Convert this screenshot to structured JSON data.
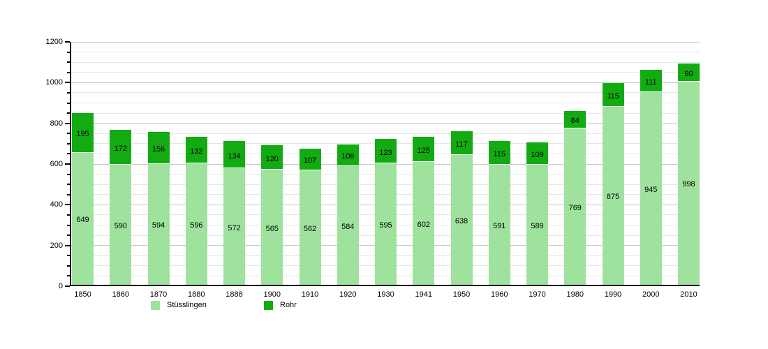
{
  "chart_data": {
    "type": "bar",
    "stacked": true,
    "title": "",
    "xlabel": "",
    "ylabel": "",
    "categories": [
      "1850",
      "1860",
      "1870",
      "1880",
      "1888",
      "1900",
      "1910",
      "1920",
      "1930",
      "1941",
      "1950",
      "1960",
      "1970",
      "1980",
      "1990",
      "2000",
      "2010"
    ],
    "series": [
      {
        "name": "Stüsslingen",
        "color": "#9ee29e",
        "values": [
          649,
          590,
          594,
          596,
          572,
          565,
          562,
          584,
          595,
          602,
          638,
          591,
          589,
          769,
          875,
          945,
          998
        ]
      },
      {
        "name": "Rohr",
        "color": "#12ab12",
        "values": [
          195,
          172,
          156,
          132,
          134,
          120,
          107,
          106,
          123,
          125,
          117,
          115,
          109,
          84,
          115,
          111,
          90
        ]
      }
    ],
    "ylim": [
      0,
      1200
    ],
    "y_major_ticks": [
      0,
      200,
      400,
      600,
      800,
      1000,
      1200
    ],
    "y_minor_step": 50,
    "grid": true,
    "data_labels": "inside-center",
    "legend_position": "bottom"
  },
  "legend": {
    "items": [
      {
        "label": "Stüsslingen",
        "color": "#9ee29e"
      },
      {
        "label": "Rohr",
        "color": "#12ab12"
      }
    ]
  }
}
